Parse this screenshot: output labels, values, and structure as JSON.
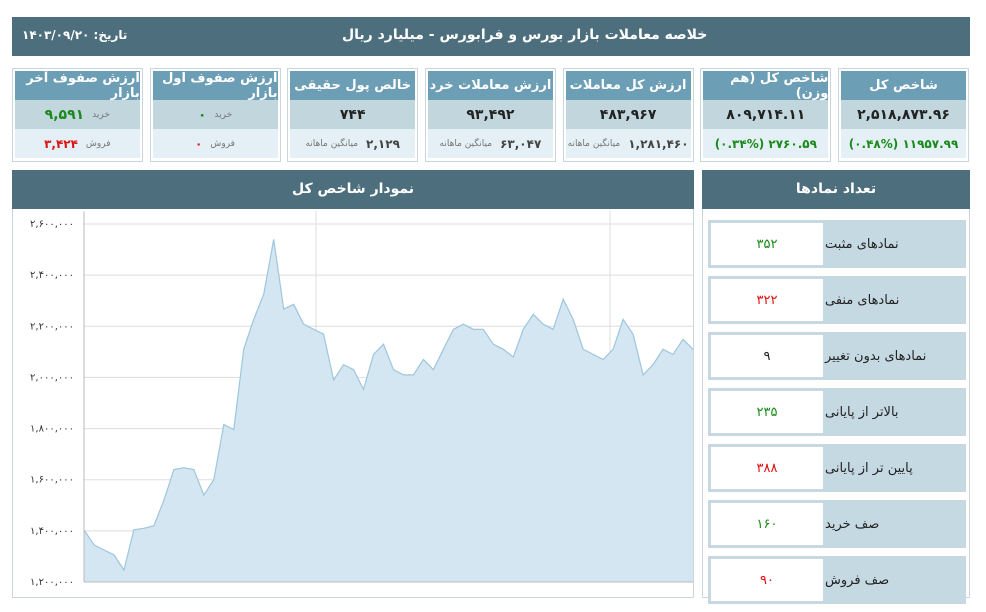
{
  "header": {
    "title": "خلاصه معاملات بازار بورس و فرابورس - میلیارد ریال",
    "date": "تاریخ: ۱۴۰۳/۰۹/۲۰"
  },
  "cards": [
    {
      "title": "شاخص کل",
      "main": {
        "value": "۲,۵۱۸,۸۷۳.۹۶",
        "color": "#222222"
      },
      "sub": {
        "value": "۱۱۹۵۷.۹۹ (۰.۴۸%)",
        "color": "#1a8a1a"
      }
    },
    {
      "title": "شاخص کل (هم وزن)",
      "main": {
        "value": "۸۰۹,۷۱۴.۱۱",
        "color": "#222222"
      },
      "sub": {
        "value": "۲۷۶۰.۵۹ (۰.۳۴%)",
        "color": "#1a8a1a"
      }
    },
    {
      "title": "ارزش کل معاملات",
      "main": {
        "value": "۴۸۳,۹۶۷",
        "color": "#222222"
      },
      "sub": {
        "label": "میانگین ماهانه",
        "value": "۱,۲۸۱,۴۶۰",
        "color": "#444444"
      }
    },
    {
      "title": "ارزش معاملات خرد",
      "main": {
        "value": "۹۳,۴۹۲",
        "color": "#222222"
      },
      "sub": {
        "label": "میانگین ماهانه",
        "value": "۶۳,۰۴۷",
        "color": "#444444"
      }
    },
    {
      "title": "خالص پول حقیقی",
      "main": {
        "value": "۷۴۴",
        "color": "#222222"
      },
      "sub": {
        "label": "میانگین ماهانه",
        "value": "۲,۱۲۹",
        "color": "#444444"
      }
    },
    {
      "title": "ارزش صفوف اول بازار",
      "main": {
        "label": "خرید",
        "value": "۰",
        "color": "#1a8a1a"
      },
      "sub": {
        "label": "فروش",
        "value": "۰",
        "color": "#dd1111"
      }
    },
    {
      "title": "ارزش صفوف آخر بازار",
      "main": {
        "label": "خرید",
        "value": "۹,۵۹۱",
        "color": "#1a8a1a"
      },
      "sub": {
        "label": "فروش",
        "value": "۳,۴۲۴",
        "color": "#dd1111"
      }
    }
  ],
  "symbols": {
    "title": "تعداد نمادها",
    "rows": [
      {
        "label": "نمادهای مثبت",
        "value": "۳۵۲",
        "color": "#1a8a1a"
      },
      {
        "label": "نمادهای منفی",
        "value": "۳۲۲",
        "color": "#dd1111"
      },
      {
        "label": "نمادهای بدون تغییر",
        "value": "۹",
        "color": "#222222"
      },
      {
        "label": "بالاتر از پایانی",
        "value": "۲۳۵",
        "color": "#1a8a1a"
      },
      {
        "label": "پایین تر از پایانی",
        "value": "۳۸۸",
        "color": "#dd1111"
      },
      {
        "label": "صف خرید",
        "value": "۱۶۰",
        "color": "#1a8a1a"
      },
      {
        "label": "صف فروش",
        "value": "۹۰",
        "color": "#dd1111"
      }
    ]
  },
  "chart_data": {
    "type": "area",
    "title": "نمودار شاخص کل",
    "color": "#9ec6dd",
    "fill": "#d3e6f1",
    "grid": true,
    "ylim": [
      1200000,
      2650000
    ],
    "yticks": [
      {
        "value": 1200000,
        "label": "۱,۲۰۰,۰۰۰"
      },
      {
        "value": 1400000,
        "label": "۱,۴۰۰,۰۰۰"
      },
      {
        "value": 1600000,
        "label": "۱,۶۰۰,۰۰۰"
      },
      {
        "value": 1800000,
        "label": "۱,۸۰۰,۰۰۰"
      },
      {
        "value": 2000000,
        "label": "۲,۰۰۰,۰۰۰"
      },
      {
        "value": 2200000,
        "label": "۲,۲۰۰,۰۰۰"
      },
      {
        "value": 2400000,
        "label": "۲,۴۰۰,۰۰۰"
      },
      {
        "value": 2600000,
        "label": "۲,۶۰۰,۰۰۰"
      }
    ],
    "categories": [
      null,
      null,
      null,
      null,
      null,
      null,
      null,
      null,
      null,
      null,
      null,
      null,
      null,
      null,
      null,
      null,
      null,
      null,
      null,
      null,
      null,
      null,
      null,
      null,
      null,
      null,
      null,
      null,
      null,
      null,
      null,
      null,
      null,
      null,
      null,
      null,
      null,
      null,
      null,
      null,
      null,
      null,
      null,
      null,
      null,
      null,
      null,
      null,
      null,
      null,
      null,
      null,
      null,
      null,
      null,
      null,
      null,
      null,
      null,
      null,
      null,
      null
    ],
    "values": [
      1404000,
      1345000,
      1325000,
      1306000,
      1247000,
      1404000,
      1410000,
      1420000,
      1520000,
      1640000,
      1647000,
      1640000,
      1540000,
      1600000,
      1816000,
      1796000,
      2110000,
      2227000,
      2325000,
      2540000,
      2267000,
      2286000,
      2208000,
      2188000,
      2169000,
      1990000,
      2050000,
      2030000,
      1953000,
      2090000,
      2130000,
      2030000,
      2010000,
      2010000,
      2070000,
      2030000,
      2110000,
      2188000,
      2208000,
      2188000,
      2188000,
      2130000,
      2110000,
      2080000,
      2188000,
      2247000,
      2208000,
      2188000,
      2306000,
      2227000,
      2110000,
      2090000,
      2070000,
      2110000,
      2227000,
      2169000,
      2010000,
      2050000,
      2110000,
      2090000,
      2149000,
      2110000
    ]
  }
}
